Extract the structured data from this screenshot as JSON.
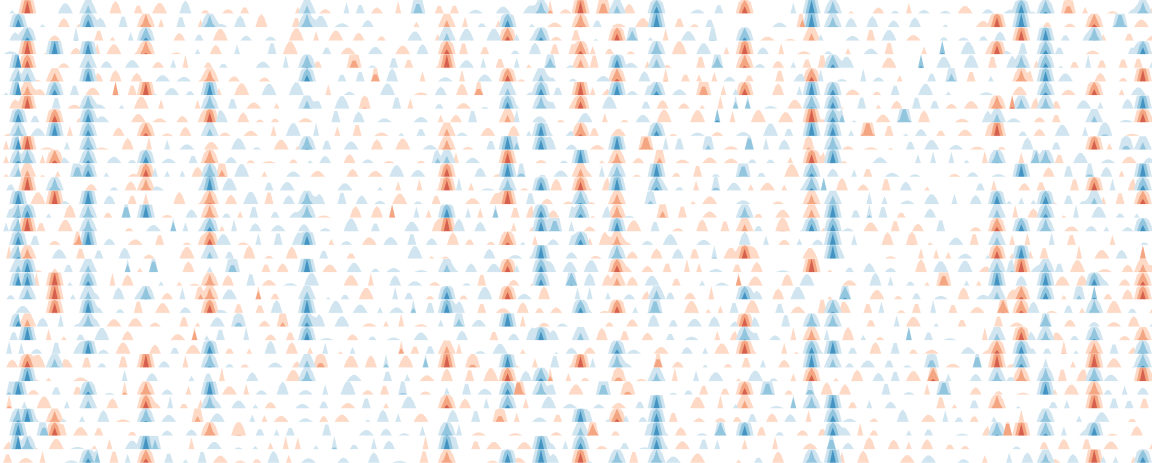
{
  "chart_data": {
    "type": "horizon",
    "title": "",
    "xlabel": "",
    "ylabel": "",
    "legend": "none",
    "grid": false,
    "bands": 3,
    "positive_colors": [
      "#fdd9c6",
      "#f4a582",
      "#d6604d",
      "#b2182b"
    ],
    "negative_colors": [
      "#d1e5f0",
      "#92c5de",
      "#4393c3",
      "#2166ac"
    ],
    "row_count": 34,
    "x_range": [
      0,
      1152
    ],
    "value_range": [
      -3,
      3
    ],
    "series": [
      {
        "seed": 11
      },
      {
        "seed": 23
      },
      {
        "seed": 37
      },
      {
        "seed": 41
      },
      {
        "seed": 53
      },
      {
        "seed": 67
      },
      {
        "seed": 71
      },
      {
        "seed": 83
      },
      {
        "seed": 97
      },
      {
        "seed": 101
      },
      {
        "seed": 113
      },
      {
        "seed": 127
      },
      {
        "seed": 131
      },
      {
        "seed": 149
      },
      {
        "seed": 151
      },
      {
        "seed": 163
      },
      {
        "seed": 173
      },
      {
        "seed": 181
      },
      {
        "seed": 191
      },
      {
        "seed": 199
      },
      {
        "seed": 211
      },
      {
        "seed": 223
      },
      {
        "seed": 229
      },
      {
        "seed": 239
      },
      {
        "seed": 241
      },
      {
        "seed": 251
      },
      {
        "seed": 263
      },
      {
        "seed": 271
      },
      {
        "seed": 281
      },
      {
        "seed": 293
      },
      {
        "seed": 307
      },
      {
        "seed": 313
      },
      {
        "seed": 331
      },
      {
        "seed": 347
      }
    ],
    "hotspots": [
      18,
      28,
      56,
      88,
      145,
      210,
      305,
      445,
      505,
      540,
      578,
      615,
      655,
      742,
      810,
      830,
      995,
      1020,
      1042,
      1090,
      1140
    ]
  }
}
